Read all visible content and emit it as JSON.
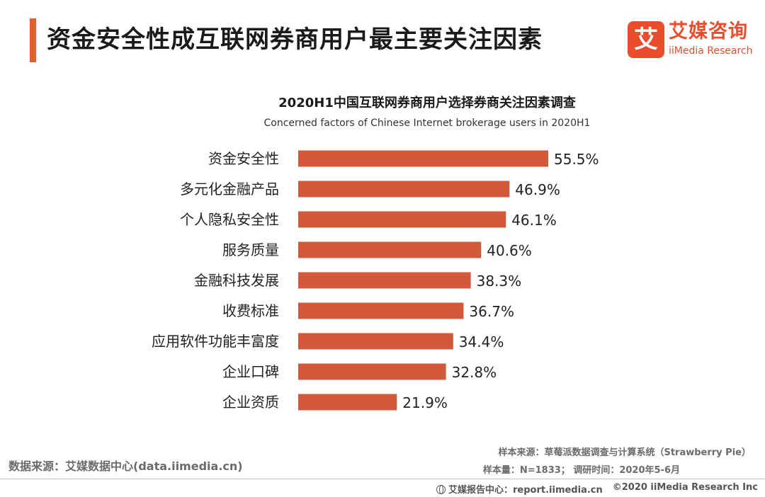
{
  "header": {
    "title": "资金安全性成互联网券商用户最主要关注因素"
  },
  "logo": {
    "mark": "艾",
    "cn": "艾媒咨询",
    "en": "iiMedia Research"
  },
  "colors": {
    "accent": "#ea5b2f",
    "bar": "#d2583a",
    "logo": "#e94d2b"
  },
  "chart_data": {
    "type": "bar",
    "orientation": "horizontal",
    "title": "2020H1中国互联网券商用户选择券商关注因素调查",
    "subtitle": "Concerned factors of Chinese Internet brokerage users in 2020H1",
    "categories": [
      "资金安全性",
      "多元化金融产品",
      "个人隐私安全性",
      "服务质量",
      "金融科技发展",
      "收费标准",
      "应用软件功能丰富度",
      "企业口碑",
      "企业资质"
    ],
    "values": [
      55.5,
      46.9,
      46.1,
      40.6,
      38.3,
      36.7,
      34.4,
      32.8,
      21.9
    ],
    "labels": [
      "55.5%",
      "46.9%",
      "46.1%",
      "40.6%",
      "38.3%",
      "36.7%",
      "34.4%",
      "32.8%",
      "21.9%"
    ],
    "unit": "%",
    "xlim": [
      0,
      60
    ],
    "grid": false,
    "legend": "none"
  },
  "footer": {
    "source_left": "数据来源：艾媒数据中心(data.iimedia.cn)",
    "sample_source": "样本来源：草莓派数据调查与计算系统（Strawberry Pie）",
    "sample_size": "样本量：N=1833；  调研时间：2020年5-6月",
    "report_center": "艾媒报告中心：report.iimedia.cn",
    "copyright": "©2020  iiMedia Research  Inc"
  }
}
